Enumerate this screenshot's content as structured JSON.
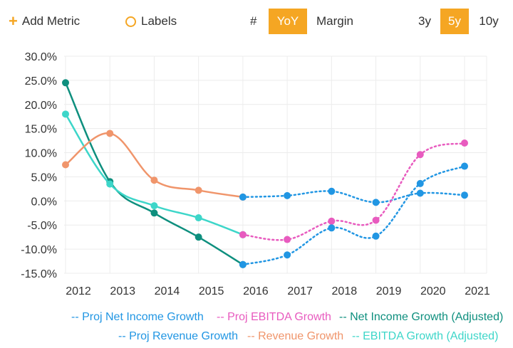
{
  "toolbar": {
    "add_metric": "Add Metric",
    "labels": "Labels",
    "hash": "#",
    "yoy": "YoY",
    "margin": "Margin",
    "y3": "3y",
    "y5": "5y",
    "y10": "10y",
    "accent_color": "#f5a623"
  },
  "chart_data": {
    "type": "line",
    "title": "",
    "xlabel": "",
    "ylabel": "",
    "x": [
      2012,
      2013,
      2014,
      2015,
      2016,
      2017,
      2018,
      2019,
      2020,
      2021
    ],
    "ylim": [
      -15,
      30
    ],
    "yticks": [
      "30.0%",
      "25.0%",
      "20.0%",
      "15.0%",
      "10.0%",
      "5.0%",
      "0.0%",
      "-5.0%",
      "-10.0%",
      "-15.0%"
    ],
    "ytick_values": [
      30,
      25,
      20,
      15,
      10,
      5,
      0,
      -5,
      -10,
      -15
    ],
    "xticks": [
      "2012",
      "2013",
      "2014",
      "2015",
      "2016",
      "2017",
      "2018",
      "2019",
      "2020",
      "2021"
    ],
    "grid": true,
    "legend_position": "bottom",
    "series": [
      {
        "name": "Net Income Growth (Adjusted)",
        "legend": "-- Net Income Growth (Adjusted)",
        "color": "#0e8f7e",
        "style": "solid",
        "points": [
          [
            2012,
            24.5
          ],
          [
            2013,
            4.0
          ],
          [
            2014,
            -2.5
          ],
          [
            2015,
            -7.5
          ],
          [
            2016,
            -13.2
          ]
        ]
      },
      {
        "name": "EBITDA Growth (Adjusted)",
        "legend": "-- EBITDA Growth (Adjusted)",
        "color": "#3dd6c9",
        "style": "solid",
        "points": [
          [
            2012,
            18.0
          ],
          [
            2013,
            3.5
          ],
          [
            2014,
            -1.0
          ],
          [
            2015,
            -3.5
          ],
          [
            2016,
            -7.0
          ]
        ]
      },
      {
        "name": "Revenue Growth",
        "legend": "-- Revenue Growth",
        "color": "#f0956b",
        "style": "solid",
        "points": [
          [
            2012,
            7.5
          ],
          [
            2013,
            14.0
          ],
          [
            2014,
            4.3
          ],
          [
            2015,
            2.2
          ],
          [
            2016,
            0.8
          ]
        ]
      },
      {
        "name": "Proj Revenue Growth",
        "legend": "-- Proj Revenue Growth",
        "color": "#2196e3",
        "style": "dotted",
        "points": [
          [
            2016,
            0.8
          ],
          [
            2017,
            1.1
          ],
          [
            2018,
            2.0
          ],
          [
            2019,
            -0.3
          ],
          [
            2020,
            1.6
          ],
          [
            2021,
            1.2
          ]
        ]
      },
      {
        "name": "Proj EBITDA Growth",
        "legend": "-- Proj EBITDA Growth",
        "color": "#e85bbf",
        "style": "dotted",
        "points": [
          [
            2016,
            -7.0
          ],
          [
            2017,
            -8.0
          ],
          [
            2018,
            -4.2
          ],
          [
            2019,
            -4.0
          ],
          [
            2020,
            9.6
          ],
          [
            2021,
            12.0
          ]
        ]
      },
      {
        "name": "Proj Net Income Growth",
        "legend": "-- Proj Net Income Growth",
        "color": "#2196e3",
        "style": "dotted",
        "points": [
          [
            2016,
            -13.2
          ],
          [
            2017,
            -11.2
          ],
          [
            2018,
            -5.6
          ],
          [
            2019,
            -7.3
          ],
          [
            2020,
            3.6
          ],
          [
            2021,
            7.2
          ]
        ]
      }
    ]
  }
}
